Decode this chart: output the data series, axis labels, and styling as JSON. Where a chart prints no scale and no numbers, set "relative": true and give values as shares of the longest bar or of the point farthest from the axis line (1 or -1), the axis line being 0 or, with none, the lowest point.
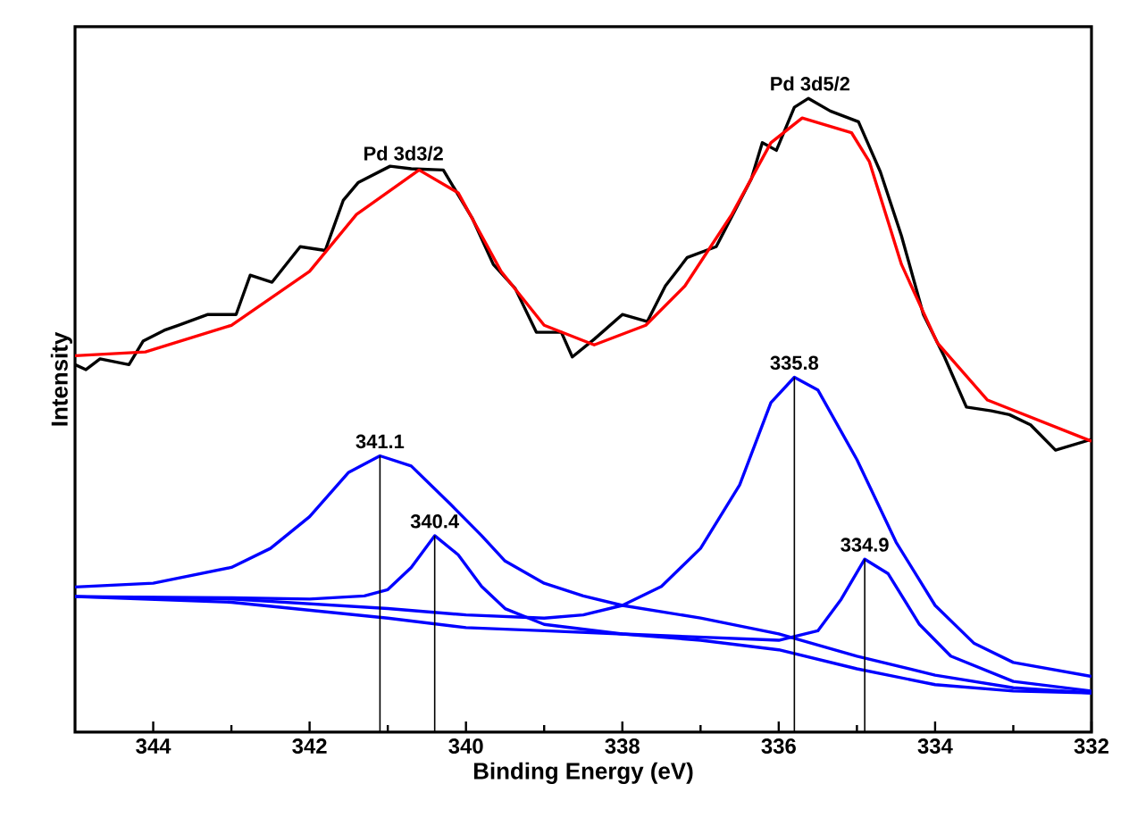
{
  "chart_data": {
    "type": "line",
    "relative": true,
    "xlabel": "Binding Energy (eV)",
    "ylabel": "Intensity",
    "xlim": [
      345,
      332
    ],
    "xticks": [
      344,
      342,
      340,
      338,
      336,
      334,
      332,
      {
        "value": 343,
        "label": null
      },
      {
        "value": 341,
        "label": null
      },
      {
        "value": 339,
        "label": null
      },
      {
        "value": 337,
        "label": null
      },
      {
        "value": 335,
        "label": null
      },
      {
        "value": 333,
        "label": null
      }
    ],
    "tick_labels": "x",
    "grid": false,
    "series": [
      {
        "color": "#000000",
        "x": [
          345,
          344.86,
          344.68,
          344.31,
          344.13,
          343.86,
          343.68,
          343.3,
          342.94,
          342.76,
          342.48,
          342.12,
          341.8,
          341.57,
          341.38,
          340.97,
          340.7,
          340.29,
          339.92,
          339.65,
          339.37,
          339.1,
          338.78,
          338.64,
          338.36,
          338.0,
          337.68,
          337.45,
          337.17,
          336.8,
          336.35,
          336.21,
          336.03,
          335.8,
          335.62,
          335.34,
          334.98,
          334.7,
          334.43,
          334.15,
          333.88,
          333.6,
          333.28,
          333.05,
          332.78,
          332.46,
          332
        ],
        "values": [
          0.58,
          0.572,
          0.589,
          0.58,
          0.617,
          0.634,
          0.642,
          0.659,
          0.659,
          0.721,
          0.71,
          0.766,
          0.76,
          0.839,
          0.867,
          0.893,
          0.889,
          0.887,
          0.811,
          0.738,
          0.7,
          0.631,
          0.631,
          0.592,
          0.62,
          0.659,
          0.648,
          0.704,
          0.749,
          0.766,
          0.873,
          0.93,
          0.918,
          0.986,
          1.0,
          0.98,
          0.963,
          0.884,
          0.783,
          0.659,
          0.592,
          0.513,
          0.507,
          0.501,
          0.485,
          0.445,
          0.462
        ]
      },
      {
        "color": "#ff0000",
        "x": [
          345,
          344.1,
          343,
          342,
          341.4,
          340.6,
          340.1,
          339.55,
          339,
          338.36,
          337.7,
          337.2,
          336.6,
          336.1,
          335.7,
          335.07,
          334.84,
          334.43,
          333.97,
          333.33,
          332
        ],
        "values": [
          0.594,
          0.6,
          0.642,
          0.727,
          0.817,
          0.887,
          0.851,
          0.727,
          0.642,
          0.611,
          0.642,
          0.704,
          0.817,
          0.93,
          0.969,
          0.946,
          0.9,
          0.738,
          0.614,
          0.524,
          0.459
        ]
      },
      {
        "color": "#0000ff",
        "x": [
          345,
          344,
          343,
          342.5,
          342,
          341.5,
          341.1,
          340.7,
          340.2,
          339.8,
          339.5,
          339,
          338.5,
          338,
          337,
          336,
          335,
          334,
          333,
          332
        ],
        "values": [
          0.229,
          0.235,
          0.26,
          0.29,
          0.34,
          0.41,
          0.436,
          0.42,
          0.36,
          0.31,
          0.27,
          0.235,
          0.215,
          0.2,
          0.18,
          0.155,
          0.12,
          0.09,
          0.07,
          0.062
        ]
      },
      {
        "color": "#0000ff",
        "x": [
          345,
          343,
          342,
          341.3,
          341,
          340.7,
          340.4,
          340.1,
          339.8,
          339.5,
          339,
          338,
          337,
          336,
          335,
          334,
          333,
          332
        ],
        "values": [
          0.214,
          0.212,
          0.21,
          0.215,
          0.225,
          0.26,
          0.31,
          0.28,
          0.23,
          0.195,
          0.17,
          0.155,
          0.145,
          0.13,
          0.1,
          0.075,
          0.065,
          0.062
        ]
      },
      {
        "color": "#0000ff",
        "x": [
          345,
          343,
          341,
          340,
          339,
          338.5,
          338,
          337.5,
          337,
          336.5,
          336.1,
          335.8,
          335.5,
          335,
          334.5,
          334,
          333.5,
          333,
          332
        ],
        "values": [
          0.214,
          0.21,
          0.195,
          0.185,
          0.18,
          0.185,
          0.2,
          0.23,
          0.29,
          0.39,
          0.52,
          0.56,
          0.54,
          0.43,
          0.3,
          0.2,
          0.14,
          0.11,
          0.088
        ]
      },
      {
        "color": "#0000ff",
        "x": [
          345,
          343,
          341,
          340,
          339,
          338,
          337,
          336,
          335.5,
          335.2,
          334.9,
          334.6,
          334.2,
          333.8,
          333,
          332
        ],
        "values": [
          0.214,
          0.205,
          0.18,
          0.165,
          0.16,
          0.155,
          0.15,
          0.145,
          0.16,
          0.21,
          0.273,
          0.25,
          0.17,
          0.12,
          0.08,
          0.065
        ]
      },
      {
        "color": "#000000",
        "x": [
          341.1,
          341.1
        ],
        "values": [
          0,
          0.436
        ]
      },
      {
        "color": "#000000",
        "x": [
          340.4,
          340.4
        ],
        "values": [
          0,
          0.31
        ]
      },
      {
        "color": "#000000",
        "x": [
          335.8,
          335.8
        ],
        "values": [
          0,
          0.56
        ]
      },
      {
        "color": "#000000",
        "x": [
          334.9,
          334.9
        ],
        "values": [
          0,
          0.273
        ]
      }
    ],
    "annotations": [
      {
        "text": "Pd 3d3/2",
        "x": 340.8,
        "y": 0.89
      },
      {
        "text": "Pd 3d5/2",
        "x": 335.6,
        "y": 1.0
      },
      {
        "text": "341.1",
        "x": 341.1,
        "y": 0.436
      },
      {
        "text": "340.4",
        "x": 340.4,
        "y": 0.31
      },
      {
        "text": "335.8",
        "x": 335.8,
        "y": 0.56
      },
      {
        "text": "334.9",
        "x": 334.9,
        "y": 0.273
      }
    ]
  }
}
